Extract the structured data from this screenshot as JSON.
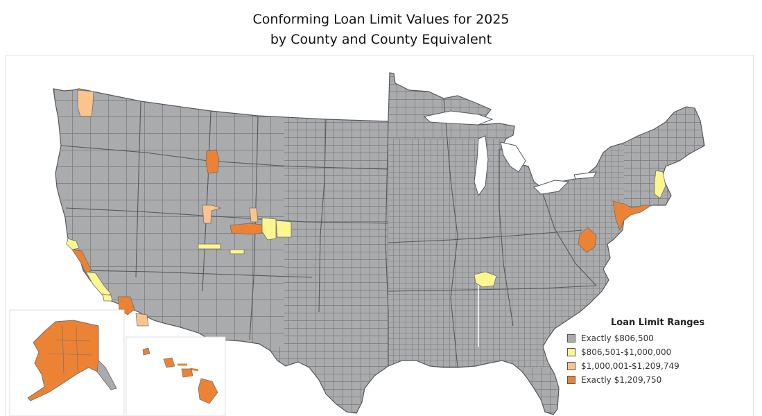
{
  "title": {
    "line1": "Conforming Loan Limit Values for 2025",
    "line2": "by County and County Equivalent"
  },
  "legend": {
    "title": "Loan Limit Ranges",
    "items": [
      {
        "label": "Exactly $806,500",
        "color": "#a9abad"
      },
      {
        "label": "$806,501-$1,000,000",
        "color": "#fdf58e"
      },
      {
        "label": "$1,000,001-$1,209,749",
        "color": "#fbc48d"
      },
      {
        "label": "Exactly $1,209,750",
        "color": "#ec8234"
      }
    ]
  },
  "colors": {
    "base": "#a9abad",
    "county_border": "#6d6f72",
    "tier1": "#fdf58e",
    "tier2": "#fbc48d",
    "tier3": "#ec8234"
  }
}
